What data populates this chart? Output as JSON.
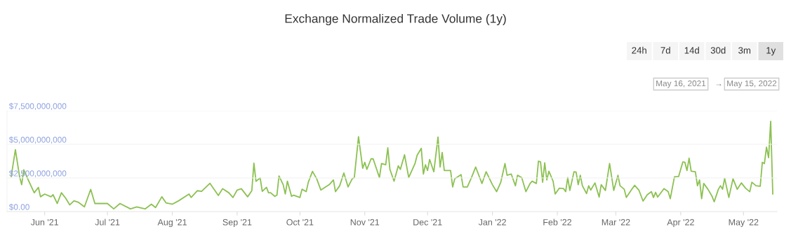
{
  "chart_data": {
    "type": "line",
    "title": "Exchange Normalized Trade Volume (1y)",
    "annotations": [
      "24h",
      "7d",
      "14d",
      "30d",
      "3m",
      "1y",
      "May 16, 2021",
      "→",
      "May 15, 2022"
    ],
    "x": [
      "2021-05-16",
      "2021-05-18",
      "2021-05-20",
      "2021-05-21",
      "2021-05-22",
      "2021-05-24",
      "2021-05-27",
      "2021-05-29",
      "2021-05-30",
      "2021-06-01",
      "2021-06-04",
      "2021-06-05",
      "2021-06-07",
      "2021-06-09",
      "2021-06-11",
      "2021-06-13",
      "2021-06-15",
      "2021-06-17",
      "2021-06-20",
      "2021-06-23",
      "2021-06-25",
      "2021-06-27",
      "2021-07-01",
      "2021-07-04",
      "2021-07-07",
      "2021-07-12",
      "2021-07-15",
      "2021-07-19",
      "2021-07-22",
      "2021-07-24",
      "2021-07-27",
      "2021-07-29",
      "2021-08-01",
      "2021-08-04",
      "2021-08-09",
      "2021-08-10",
      "2021-08-13",
      "2021-08-15",
      "2021-08-19",
      "2021-08-23",
      "2021-08-25",
      "2021-08-28",
      "2021-08-30",
      "2021-09-01",
      "2021-09-03",
      "2021-09-06",
      "2021-09-08",
      "2021-09-09",
      "2021-09-10",
      "2021-09-12",
      "2021-09-13",
      "2021-09-15",
      "2021-09-16",
      "2021-09-17",
      "2021-09-19",
      "2021-09-20",
      "2021-09-21",
      "2021-09-23",
      "2021-09-24",
      "2021-09-25",
      "2021-09-27",
      "2021-09-28",
      "2021-10-01",
      "2021-10-02",
      "2021-10-04",
      "2021-10-05",
      "2021-10-07",
      "2021-10-09",
      "2021-10-11",
      "2021-10-15",
      "2021-10-17",
      "2021-10-18",
      "2021-10-20",
      "2021-10-22",
      "2021-10-24",
      "2021-10-26",
      "2021-10-27",
      "2021-10-29",
      "2021-10-31",
      "2021-11-01",
      "2021-11-02",
      "2021-11-04",
      "2021-11-05",
      "2021-11-08",
      "2021-11-09",
      "2021-11-11",
      "2021-11-12",
      "2021-11-13",
      "2021-11-15",
      "2021-11-17",
      "2021-11-18",
      "2021-11-20",
      "2021-11-22",
      "2021-11-25",
      "2021-11-26",
      "2021-11-28",
      "2021-11-29",
      "2021-11-30",
      "2021-12-01",
      "2021-12-02",
      "2021-12-04",
      "2021-12-06",
      "2021-12-07",
      "2021-12-08",
      "2021-12-09",
      "2021-12-12",
      "2021-12-13",
      "2021-12-14",
      "2021-12-17",
      "2021-12-18",
      "2021-12-20",
      "2021-12-22",
      "2021-12-24",
      "2021-12-27",
      "2021-12-29",
      "2022-01-01",
      "2022-01-03",
      "2022-01-05",
      "2022-01-07",
      "2022-01-08",
      "2022-01-10",
      "2022-01-12",
      "2022-01-13",
      "2022-01-15",
      "2022-01-17",
      "2022-01-19",
      "2022-01-20",
      "2022-01-22",
      "2022-01-23",
      "2022-01-24",
      "2022-01-25",
      "2022-01-26",
      "2022-01-27",
      "2022-01-28",
      "2022-01-30",
      "2022-01-31",
      "2022-02-02",
      "2022-02-04",
      "2022-02-05",
      "2022-02-06",
      "2022-02-07",
      "2022-02-09",
      "2022-02-10",
      "2022-02-11",
      "2022-02-12",
      "2022-02-13",
      "2022-02-15",
      "2022-02-16",
      "2022-02-17",
      "2022-02-19",
      "2022-02-21",
      "2022-02-22",
      "2022-02-24",
      "2022-02-26",
      "2022-02-28",
      "2022-03-02",
      "2022-03-03",
      "2022-03-05",
      "2022-03-06",
      "2022-03-09",
      "2022-03-10",
      "2022-03-12",
      "2022-03-14",
      "2022-03-16",
      "2022-03-18",
      "2022-03-19",
      "2022-03-20",
      "2022-03-21",
      "2022-03-24",
      "2022-03-26",
      "2022-03-27",
      "2022-03-29",
      "2022-03-31",
      "2022-04-02",
      "2022-04-03",
      "2022-04-04",
      "2022-04-05",
      "2022-04-06",
      "2022-04-08",
      "2022-04-09",
      "2022-04-10",
      "2022-04-11",
      "2022-04-12",
      "2022-04-14",
      "2022-04-16",
      "2022-04-17",
      "2022-04-19",
      "2022-04-20",
      "2022-04-21",
      "2022-04-22",
      "2022-04-24",
      "2022-04-26",
      "2022-04-28",
      "2022-04-30",
      "2022-05-02",
      "2022-05-04",
      "2022-05-05",
      "2022-05-07",
      "2022-05-09",
      "2022-05-10",
      "2022-05-11",
      "2022-05-12",
      "2022-05-13",
      "2022-05-14",
      "2022-05-15"
    ],
    "series": [
      {
        "color": "#8cc152",
        "values": [
          2600000000.0,
          4600000000.0,
          2600000000.0,
          2000000000.0,
          3100000000.0,
          2400000000.0,
          1400000000.0,
          1800000000.0,
          1100000000.0,
          1300000000.0,
          1100000000.0,
          1250000000.0,
          600000000.0,
          1400000000.0,
          1000000000.0,
          500000000.0,
          800000000.0,
          700000000.0,
          350000000.0,
          1650000000.0,
          600000000.0,
          600000000.0,
          600000000.0,
          200000000.0,
          600000000.0,
          200000000.0,
          350000000.0,
          200000000.0,
          550000000.0,
          300000000.0,
          1100000000.0,
          650000000.0,
          550000000.0,
          800000000.0,
          1300000000.0,
          1050000000.0,
          1550000000.0,
          1500000000.0,
          2100000000.0,
          1200000000.0,
          1700000000.0,
          1400000000.0,
          1050000000.0,
          1600000000.0,
          1700000000.0,
          1100000000.0,
          1550000000.0,
          3600000000.0,
          2250000000.0,
          2500000000.0,
          1500000000.0,
          1800000000.0,
          1400000000.0,
          1400000000.0,
          1130000000.0,
          1220000000.0,
          2650000000.0,
          2000000000.0,
          1310000000.0,
          2260000000.0,
          1130000000.0,
          1220000000.0,
          1050000000.0,
          1660000000.0,
          1480000000.0,
          2180000000.0,
          2990000000.0,
          2440000000.0,
          1600000000.0,
          2000000000.0,
          2350000000.0,
          1480000000.0,
          1920000000.0,
          2870000000.0,
          1830000000.0,
          2440000000.0,
          2530000000.0,
          5570000000.0,
          3220000000.0,
          3660000000.0,
          3140000000.0,
          3920000000.0,
          3920000000.0,
          2530000000.0,
          3570000000.0,
          3480000000.0,
          4740000000.0,
          3140000000.0,
          2260000000.0,
          3400000000.0,
          3140000000.0,
          4220000000.0,
          2530000000.0,
          3570000000.0,
          4180000000.0,
          4700000000.0,
          2790000000.0,
          3480000000.0,
          3050000000.0,
          3870000000.0,
          2960000000.0,
          5540000000.0,
          3310000000.0,
          4390000000.0,
          3050000000.0,
          3050000000.0,
          1830000000.0,
          2440000000.0,
          2750000000.0,
          1830000000.0,
          1830000000.0,
          2530000000.0,
          3310000000.0,
          2090000000.0,
          2960000000.0,
          2000000000.0,
          1480000000.0,
          2180000000.0,
          3570000000.0,
          2700000000.0,
          2790000000.0,
          1920000000.0,
          2700000000.0,
          2530000000.0,
          1480000000.0,
          2090000000.0,
          2260000000.0,
          2090000000.0,
          3750000000.0,
          3690000000.0,
          2180000000.0,
          3620000000.0,
          2350000000.0,
          3000000000.0,
          2260000000.0,
          1310000000.0,
          1740000000.0,
          1710000000.0,
          1480000000.0,
          2530000000.0,
          1570000000.0,
          2960000000.0,
          2930000000.0,
          2000000000.0,
          2700000000.0,
          1920000000.0,
          1340000000.0,
          1920000000.0,
          1600000000.0,
          2130000000.0,
          1080000000.0,
          2000000000.0,
          1570000000.0,
          3570000000.0,
          1570000000.0,
          2700000000.0,
          1920000000.0,
          1660000000.0,
          1050000000.0,
          1740000000.0,
          1950000000.0,
          1600000000.0,
          780000000.0,
          1250000000.0,
          1480000000.0,
          1050000000.0,
          1430000000.0,
          1080000000.0,
          1710000000.0,
          1480000000.0,
          960000000.0,
          2580000000.0,
          2610000000.0,
          3690000000.0,
          3660000000.0,
          3050000000.0,
          3970000000.0,
          3000000000.0,
          2960000000.0,
          1920000000.0,
          2350000000.0,
          960000000.0,
          2090000000.0,
          1660000000.0,
          1130000000.0,
          730000000.0,
          1660000000.0,
          1920000000.0,
          1660000000.0,
          2470000000.0,
          1050000000.0,
          2440000000.0,
          1660000000.0,
          2130000000.0,
          1740000000.0,
          1480000000.0,
          2180000000.0,
          1920000000.0,
          1880000000.0,
          3660000000.0,
          3570000000.0,
          4790000000.0,
          4010000000.0,
          6710000000.0,
          1310000000.0
        ]
      }
    ],
    "xlim": [
      "2021-05-14",
      "2022-05-17"
    ],
    "xticks": [
      {
        "value": "2021-06-01",
        "label": "Jun '21"
      },
      {
        "value": "2021-07-01",
        "label": "Jul '21"
      },
      {
        "value": "2021-08-01",
        "label": "Aug '21"
      },
      {
        "value": "2021-09-01",
        "label": "Sep '21"
      },
      {
        "value": "2021-10-01",
        "label": "Oct '21"
      },
      {
        "value": "2021-11-01",
        "label": "Nov '21"
      },
      {
        "value": "2021-12-01",
        "label": "Dec '21"
      },
      {
        "value": "2022-01-01",
        "label": "Jan '22"
      },
      {
        "value": "2022-02-01",
        "label": "Feb '22"
      },
      {
        "value": "2022-03-01",
        "label": "Mar '22"
      },
      {
        "value": "2022-04-01",
        "label": "Apr '22"
      },
      {
        "value": "2022-05-01",
        "label": "May '22"
      }
    ],
    "ylim": [
      0,
      7500000000.0
    ],
    "yticks": [
      {
        "value": 0,
        "label": "$0.00"
      },
      {
        "value": 2500000000.0,
        "label": "$2,500,000,000"
      },
      {
        "value": 5000000000.0,
        "label": "$5,000,000,000"
      },
      {
        "value": 7500000000.0,
        "label": "$7,500,000,000"
      }
    ],
    "grid": "y",
    "marker": "none",
    "line_style": "solid"
  }
}
